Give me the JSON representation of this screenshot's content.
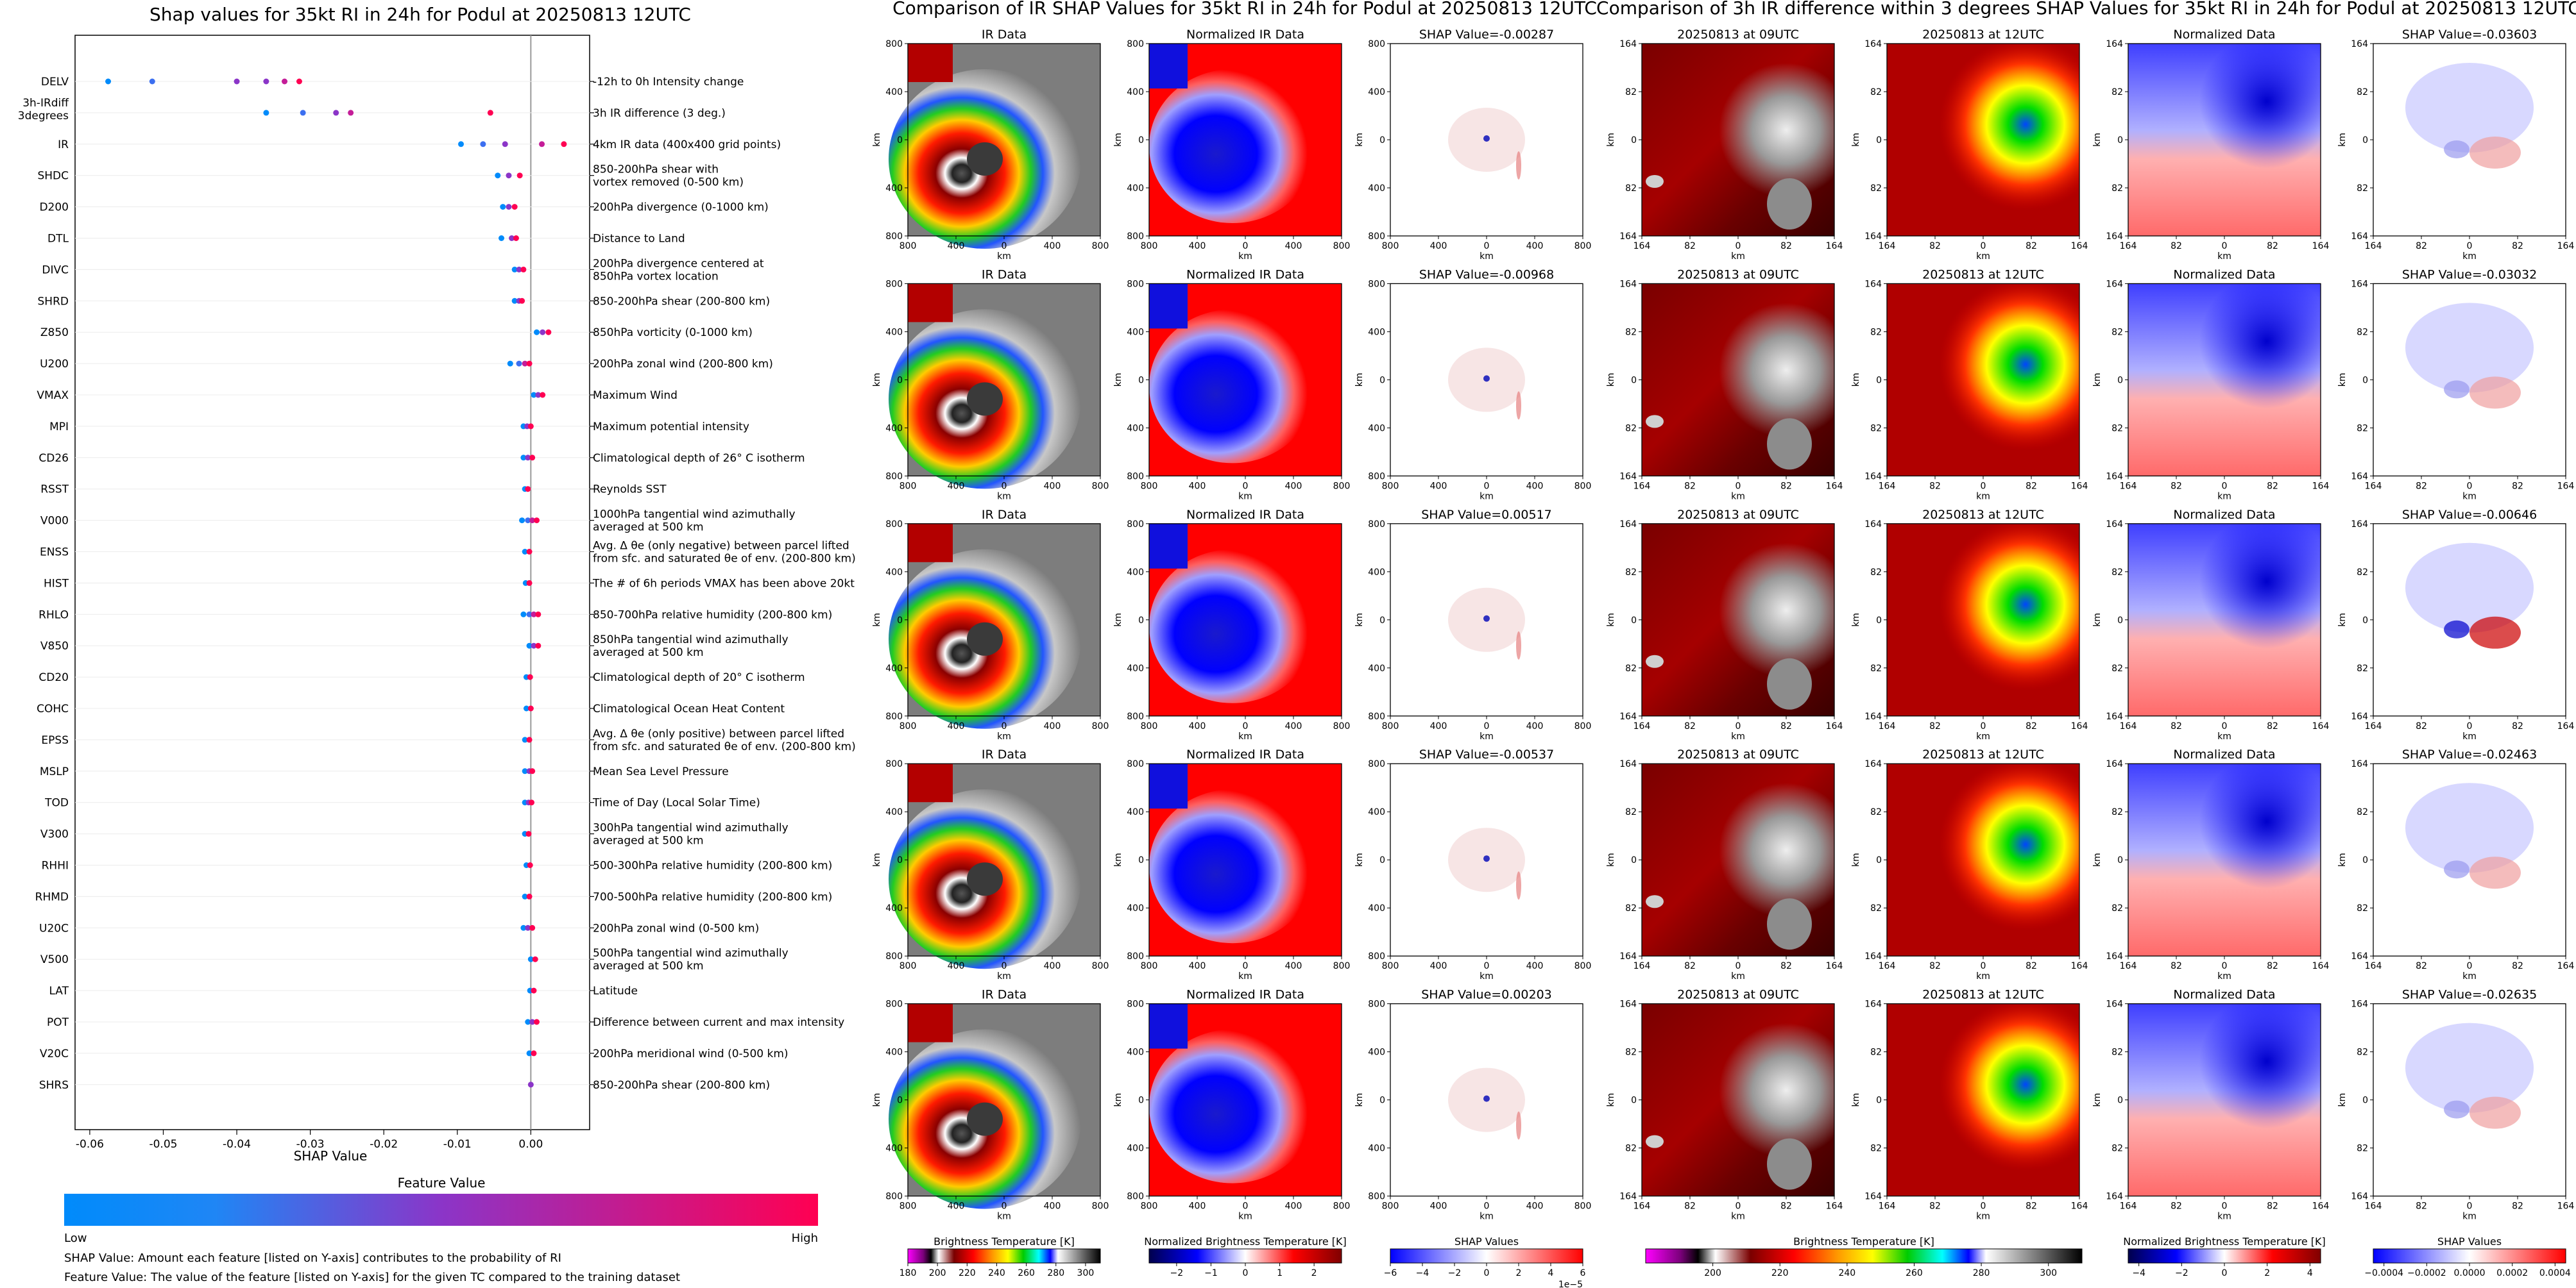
{
  "page_titles": {
    "left": "Shap values for 35kt RI in 24h for Podul at 20250813 12UTC",
    "middle": "Comparison of IR SHAP Values for 35kt RI in 24h for Podul at 20250813 12UTC",
    "right": "Comparison of 3h IR difference within 3 degrees SHAP Values for 35kt RI in 24h for Podul at 20250813 12UTC"
  },
  "chart_data": [
    {
      "type": "scatter",
      "title": "Shap values for 35kt RI in 24h for Podul at 20250813 12UTC",
      "xlabel": "SHAP Value",
      "xlim": [
        -0.062,
        0.008
      ],
      "xticks": [
        "-0.06",
        "-0.05",
        "-0.04",
        "-0.03",
        "-0.02",
        "-0.01",
        "0.00"
      ],
      "features": [
        {
          "code": "DELV",
          "code2": "",
          "desc": "-12h to 0h Intensity change",
          "desc2": "",
          "values": [
            -0.0575,
            -0.0515,
            -0.04,
            -0.036,
            -0.0335,
            -0.0315
          ]
        },
        {
          "code": "3h-IRdiff",
          "code2": "3degrees",
          "desc": "3h IR difference (3 deg.)",
          "desc2": "",
          "values": [
            -0.036,
            -0.031,
            -0.0265,
            -0.0245,
            -0.0055
          ]
        },
        {
          "code": "IR",
          "code2": "",
          "desc": "4km IR data (400x400 grid points)",
          "desc2": "",
          "values": [
            -0.0095,
            -0.0065,
            -0.0035,
            0.0015,
            0.0045
          ]
        },
        {
          "code": "SHDC",
          "code2": "",
          "desc": "850-200hPa shear with",
          "desc2": "vortex removed (0-500 km)",
          "values": [
            -0.0045,
            -0.003,
            -0.0015
          ]
        },
        {
          "code": "D200",
          "code2": "",
          "desc": "200hPa divergence (0-1000 km)",
          "desc2": "",
          "values": [
            -0.0038,
            -0.003,
            -0.0022
          ]
        },
        {
          "code": "DTL",
          "code2": "",
          "desc": "Distance to Land",
          "desc2": "",
          "values": [
            -0.004,
            -0.0026,
            -0.002
          ]
        },
        {
          "code": "DIVC",
          "code2": "",
          "desc": "200hPa divergence centered at",
          "desc2": "850hPa vortex location",
          "values": [
            -0.0022,
            -0.0016,
            -0.001
          ]
        },
        {
          "code": "SHRD",
          "code2": "",
          "desc": "850-200hPa shear (200-800 km)",
          "desc2": "",
          "values": [
            -0.0022,
            -0.0016,
            -0.0012
          ]
        },
        {
          "code": "Z850",
          "code2": "",
          "desc": "850hPa vorticity (0-1000 km)",
          "desc2": "",
          "values": [
            0.0008,
            0.0016,
            0.0024
          ]
        },
        {
          "code": "U200",
          "code2": "",
          "desc": "200hPa zonal wind (200-800 km)",
          "desc2": "",
          "values": [
            -0.0028,
            -0.0016,
            -0.0008,
            -0.0002
          ]
        },
        {
          "code": "VMAX",
          "code2": "",
          "desc": "Maximum Wind",
          "desc2": "",
          "values": [
            0.0004,
            0.001,
            0.0016
          ]
        },
        {
          "code": "MPI",
          "code2": "",
          "desc": "Maximum potential intensity",
          "desc2": "",
          "values": [
            -0.001,
            -0.0005,
            0.0
          ]
        },
        {
          "code": "CD26",
          "code2": "",
          "desc": "Climatological depth of 26° C isotherm",
          "desc2": "",
          "values": [
            -0.001,
            -0.0004,
            0.0002
          ]
        },
        {
          "code": "RSST",
          "code2": "",
          "desc": "Reynolds SST",
          "desc2": "",
          "values": [
            -0.0008,
            -0.0004
          ]
        },
        {
          "code": "V000",
          "code2": "",
          "desc": "1000hPa tangential wind azimuthally",
          "desc2": "averaged at 500 km",
          "values": [
            -0.0012,
            -0.0004,
            0.0002,
            0.0008
          ]
        },
        {
          "code": "ENSS",
          "code2": "",
          "desc": "Avg. Δ θe (only negative) between parcel lifted",
          "desc2": "from sfc. and saturated θe of env. (200-800 km)",
          "values": [
            -0.0008,
            -0.0002
          ]
        },
        {
          "code": "HIST",
          "code2": "",
          "desc": "The # of 6h periods VMAX has been above 20kt",
          "desc2": "",
          "values": [
            -0.0007,
            -0.0002
          ]
        },
        {
          "code": "RHLO",
          "code2": "",
          "desc": "850-700hPa relative humidity (200-800 km)",
          "desc2": "",
          "values": [
            -0.001,
            -0.0002,
            0.0004,
            0.001
          ]
        },
        {
          "code": "V850",
          "code2": "",
          "desc": "850hPa tangential wind azimuthally",
          "desc2": "averaged at 500 km",
          "values": [
            -0.0002,
            0.0004,
            0.001
          ]
        },
        {
          "code": "CD20",
          "code2": "",
          "desc": "Climatological depth of 20° C isotherm",
          "desc2": "",
          "values": [
            -0.0006,
            -0.0001
          ]
        },
        {
          "code": "COHC",
          "code2": "",
          "desc": "Climatological Ocean Heat Content",
          "desc2": "",
          "values": [
            -0.0006,
            0.0
          ]
        },
        {
          "code": "EPSS",
          "code2": "",
          "desc": "Avg. Δ θe (only positive) between parcel lifted",
          "desc2": "from sfc. and saturated θe of env. (200-800 km)",
          "values": [
            -0.0008,
            -0.0002
          ]
        },
        {
          "code": "MSLP",
          "code2": "",
          "desc": "Mean Sea Level Pressure",
          "desc2": "",
          "values": [
            -0.0008,
            -0.0002,
            0.0002
          ]
        },
        {
          "code": "TOD",
          "code2": "",
          "desc": "Time of Day (Local Solar Time)",
          "desc2": "",
          "values": [
            -0.0008,
            -0.0003,
            0.0001
          ]
        },
        {
          "code": "V300",
          "code2": "",
          "desc": "300hPa tangential wind azimuthally",
          "desc2": "averaged at 500 km",
          "values": [
            -0.0008,
            -0.0003
          ]
        },
        {
          "code": "RHHI",
          "code2": "",
          "desc": "500-300hPa relative humidity (200-800 km)",
          "desc2": "",
          "values": [
            -0.0006,
            -0.0001
          ]
        },
        {
          "code": "RHMD",
          "code2": "",
          "desc": "700-500hPa relative humidity (200-800 km)",
          "desc2": "",
          "values": [
            -0.0008,
            -0.0002
          ]
        },
        {
          "code": "U20C",
          "code2": "",
          "desc": "200hPa zonal wind (0-500 km)",
          "desc2": "",
          "values": [
            -0.001,
            -0.0004,
            0.0002
          ]
        },
        {
          "code": "V500",
          "code2": "",
          "desc": "500hPa tangential wind azimuthally",
          "desc2": "averaged at 500 km",
          "values": [
            0.0,
            0.0006
          ]
        },
        {
          "code": "LAT",
          "code2": "",
          "desc": "Latitude",
          "desc2": "",
          "values": [
            -0.0001,
            0.0004
          ]
        },
        {
          "code": "POT",
          "code2": "",
          "desc": "Difference between current and max intensity",
          "desc2": "",
          "values": [
            -0.0004,
            0.0002,
            0.0008
          ]
        },
        {
          "code": "V20C",
          "code2": "",
          "desc": "200hPa meridional wind (0-500 km)",
          "desc2": "",
          "values": [
            -0.0002,
            0.0004
          ]
        },
        {
          "code": "SHRS",
          "code2": "",
          "desc": "850-200hPa shear (200-800 km)",
          "desc2": "",
          "values": [
            0.0
          ]
        }
      ],
      "colorbar": {
        "title": "Feature Value",
        "low": "Low",
        "high": "High",
        "colors": [
          "#008bfb",
          "#8b35c8",
          "#ff0052"
        ]
      },
      "notes": [
        "SHAP Value: Amount each feature [listed on Y-axis] contributes to the probability of RI",
        "Feature Value: The value of the feature [listed on Y-axis] for the given TC compared to the training dataset"
      ]
    },
    {
      "type": "heatmap",
      "title": "Comparison of IR SHAP Values for 35kt RI in 24h for Podul at 20250813 12UTC",
      "panel_titles": [
        "IR Data",
        "Normalized IR Data",
        "SHAP Value"
      ],
      "shap_values": [
        "-0.00287",
        "-0.00968",
        "0.00517",
        "-0.00537",
        "0.00203"
      ],
      "axis_label": "km",
      "ticks_x": [
        "800",
        "400",
        "0",
        "400",
        "800"
      ],
      "ticks_y": [
        "800",
        "400",
        "0",
        "400",
        "800"
      ],
      "colorbars": [
        {
          "label": "Brightness Temperature [K]",
          "ticks": [
            "180",
            "200",
            "220",
            "240",
            "260",
            "280",
            "300"
          ],
          "range": [
            180,
            310
          ]
        },
        {
          "label": "Normalized Brightness Temperature [K]",
          "ticks": [
            "−2",
            "−1",
            "0",
            "1",
            "2"
          ],
          "range": [
            -2.8,
            2.8
          ]
        },
        {
          "label": "SHAP Values",
          "ticks": [
            "−6",
            "−4",
            "−2",
            "0",
            "2",
            "4",
            "6"
          ],
          "range": [
            -6,
            6
          ],
          "exponent": "1e−5"
        }
      ]
    },
    {
      "type": "heatmap",
      "title": "Comparison of 3h IR difference within 3 degrees SHAP Values for 35kt RI in 24h for Podul at 20250813 12UTC",
      "panel_titles": [
        "20250813 at 09UTC",
        "20250813 at 12UTC",
        "Normalized Data",
        "SHAP Value"
      ],
      "shap_values": [
        "-0.03603",
        "-0.03032",
        "-0.00646",
        "-0.02463",
        "-0.02635"
      ],
      "axis_label": "km",
      "ticks_x": [
        "164",
        "82",
        "0",
        "82",
        "164"
      ],
      "ticks_y": [
        "164",
        "82",
        "0",
        "82",
        "164"
      ],
      "colorbars": [
        {
          "label": "Brightness Temperature [K]",
          "ticks": [
            "200",
            "220",
            "240",
            "260",
            "280",
            "300"
          ],
          "range": [
            180,
            310
          ]
        },
        {
          "label": "Normalized Brightness Temperature [K]",
          "ticks": [
            "−4",
            "−2",
            "0",
            "2",
            "4"
          ],
          "range": [
            -4.5,
            4.5
          ]
        },
        {
          "label": "SHAP Values",
          "ticks": [
            "−0.0004",
            "−0.0002",
            "0.0000",
            "0.0002",
            "0.0004"
          ],
          "range": [
            -0.00045,
            0.00045
          ]
        }
      ]
    }
  ]
}
